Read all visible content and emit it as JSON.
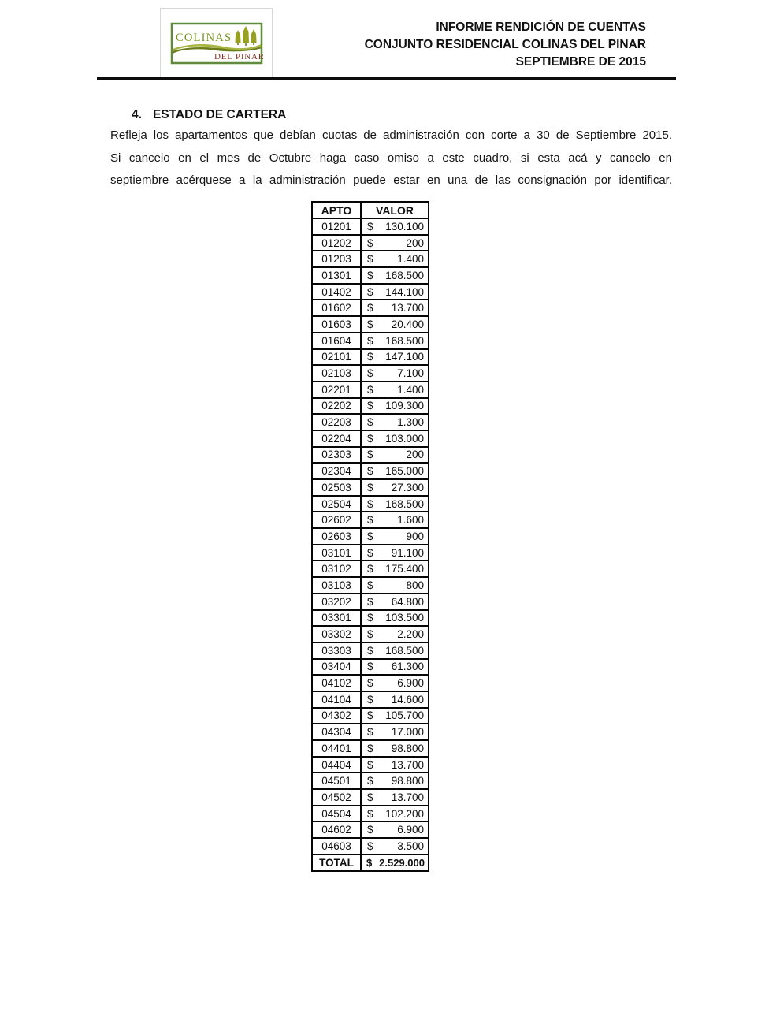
{
  "logo": {
    "name": "COLINAS",
    "subname": "DEL PINAR",
    "border_color": "#5e8c3c",
    "name_color": "#77941e",
    "subname_color": "#8e2f1f",
    "tree_color": "#97a01f",
    "swoosh_dark": "#6b7d1c",
    "swoosh_light": "#a9b542"
  },
  "header": {
    "line1": "INFORME RENDICIÓN DE CUENTAS",
    "line2": "CONJUNTO RESIDENCIAL COLINAS DEL PINAR",
    "line3": "SEPTIEMBRE DE 2015"
  },
  "section": {
    "number": "4.",
    "title": "ESTADO DE CARTERA"
  },
  "paragraph_lines": [
    "Refleja los apartamentos que debían cuotas de administración con corte a 30 de Septiembre 2015.",
    "Si cancelo en el mes de Octubre haga caso omiso a este cuadro, si esta acá y cancelo en",
    "septiembre acérquese a la administración puede estar en una de las consignación por identificar."
  ],
  "table": {
    "headers": [
      "APTO",
      "VALOR"
    ],
    "currency": "$",
    "rows": [
      [
        "01201",
        "130.100"
      ],
      [
        "01202",
        "200"
      ],
      [
        "01203",
        "1.400"
      ],
      [
        "01301",
        "168.500"
      ],
      [
        "01402",
        "144.100"
      ],
      [
        "01602",
        "13.700"
      ],
      [
        "01603",
        "20.400"
      ],
      [
        "01604",
        "168.500"
      ],
      [
        "02101",
        "147.100"
      ],
      [
        "02103",
        "7.100"
      ],
      [
        "02201",
        "1.400"
      ],
      [
        "02202",
        "109.300"
      ],
      [
        "02203",
        "1.300"
      ],
      [
        "02204",
        "103.000"
      ],
      [
        "02303",
        "200"
      ],
      [
        "02304",
        "165.000"
      ],
      [
        "02503",
        "27.300"
      ],
      [
        "02504",
        "168.500"
      ],
      [
        "02602",
        "1.600"
      ],
      [
        "02603",
        "900"
      ],
      [
        "03101",
        "91.100"
      ],
      [
        "03102",
        "175.400"
      ],
      [
        "03103",
        "800"
      ],
      [
        "03202",
        "64.800"
      ],
      [
        "03301",
        "103.500"
      ],
      [
        "03302",
        "2.200"
      ],
      [
        "03303",
        "168.500"
      ],
      [
        "03404",
        "61.300"
      ],
      [
        "04102",
        "6.900"
      ],
      [
        "04104",
        "14.600"
      ],
      [
        "04302",
        "105.700"
      ],
      [
        "04304",
        "17.000"
      ],
      [
        "04401",
        "98.800"
      ],
      [
        "04404",
        "13.700"
      ],
      [
        "04501",
        "98.800"
      ],
      [
        "04502",
        "13.700"
      ],
      [
        "04504",
        "102.200"
      ],
      [
        "04602",
        "6.900"
      ],
      [
        "04603",
        "3.500"
      ]
    ],
    "total_label": "TOTAL",
    "total_value": "2.529.000"
  }
}
